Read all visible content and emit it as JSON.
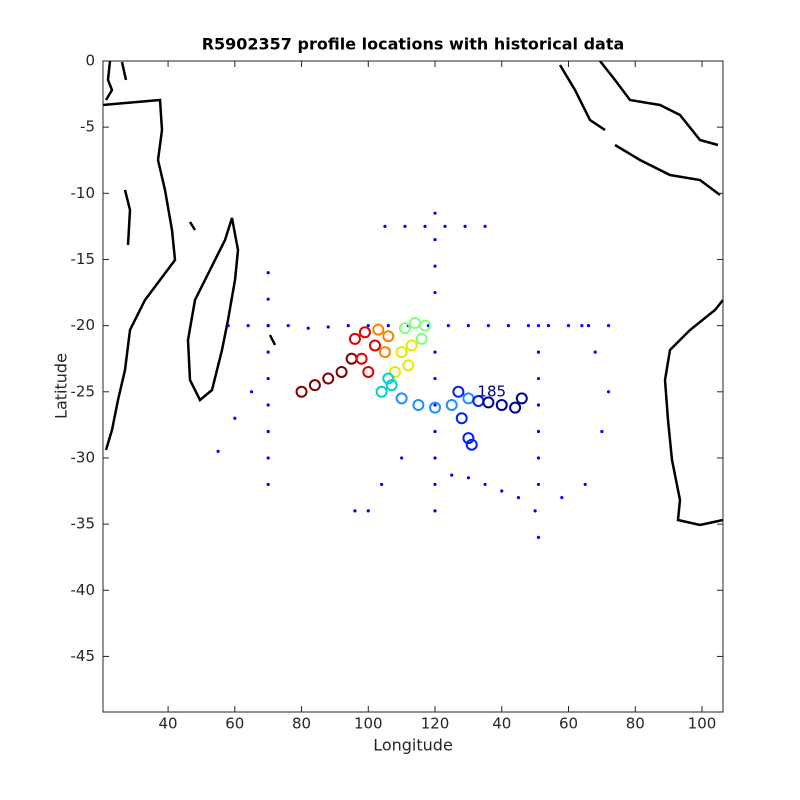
{
  "chart_data": {
    "type": "scatter",
    "title": "R5902357 profile locations with historical data",
    "xlabel": "Longitude",
    "ylabel": "Latitude",
    "xlim": [
      20.5,
      206.3
    ],
    "ylim": [
      -49.2,
      0
    ],
    "xticks": [
      40,
      60,
      80,
      100,
      120,
      {
        "value": 140,
        "label": "40"
      },
      {
        "value": 160,
        "label": "60"
      },
      {
        "value": 180,
        "label": "80"
      },
      {
        "value": 200,
        "label": "100"
      }
    ],
    "yticks": [
      0,
      -5,
      -10,
      -15,
      -20,
      -25,
      -30,
      -35,
      -40,
      -45
    ],
    "grid": false,
    "annotations": [
      {
        "text": "185",
        "x": 137,
        "y": -25
      }
    ],
    "series": [
      {
        "color": "#0000ff",
        "marker": "dot",
        "x": [
          58,
          64,
          70,
          76,
          82,
          88,
          94,
          100,
          106,
          112,
          118,
          124,
          130,
          136,
          142,
          148,
          154,
          160,
          166,
          172,
          120,
          120,
          120,
          120,
          120,
          120,
          120,
          120,
          120,
          120,
          120,
          151,
          151,
          151,
          151,
          151,
          151,
          151,
          151,
          105,
          111,
          117,
          123,
          129,
          135,
          70,
          70,
          70,
          70,
          70,
          70,
          70,
          70,
          70,
          125,
          130,
          135,
          140,
          145,
          150,
          158,
          165,
          170,
          172,
          168,
          164,
          110,
          104,
          100,
          96,
          55,
          60,
          65
        ],
        "y": [
          -20,
          -20,
          -20,
          -20,
          -20.2,
          -20.1,
          -20,
          -20,
          -20,
          -20,
          -20,
          -20,
          -20,
          -20,
          -20,
          -20,
          -20,
          -20,
          -20,
          -20,
          -11.5,
          -13.5,
          -15.5,
          -17.5,
          -22,
          -24,
          -26,
          -28,
          -30,
          -32,
          -34,
          -20,
          -22,
          -24,
          -26,
          -28,
          -30,
          -32,
          -36,
          -12.5,
          -12.5,
          -12.5,
          -12.5,
          -12.5,
          -12.5,
          -16,
          -18,
          -20,
          -22,
          -24,
          -26,
          -28,
          -30,
          -32,
          -31.3,
          -31.5,
          -32,
          -32.5,
          -33,
          -34,
          -33,
          -32,
          -28,
          -25,
          -22,
          -20,
          -30,
          -32,
          -34,
          -34,
          -29.5,
          -27,
          -25
        ]
      },
      {
        "color": "#800000",
        "marker": "ring",
        "x": [
          80,
          84,
          88,
          92,
          95
        ],
        "y": [
          -25,
          -24.5,
          -24,
          -23.5,
          -22.5
        ]
      },
      {
        "color": "#e00000",
        "marker": "ring",
        "x": [
          96,
          98,
          100,
          102,
          99
        ],
        "y": [
          -21,
          -22.5,
          -23.5,
          -21.5,
          -20.5
        ]
      },
      {
        "color": "#ff8000",
        "marker": "ring",
        "x": [
          103,
          106,
          105
        ],
        "y": [
          -20.3,
          -20.8,
          -22
        ]
      },
      {
        "color": "#e8e800",
        "marker": "ring",
        "x": [
          110,
          112,
          108,
          113
        ],
        "y": [
          -22,
          -23,
          -23.5,
          -21.5
        ]
      },
      {
        "color": "#80ff80",
        "marker": "ring",
        "x": [
          114,
          117,
          111,
          116
        ],
        "y": [
          -19.8,
          -20,
          -20.2,
          -21
        ]
      },
      {
        "color": "#00d0d0",
        "marker": "ring",
        "x": [
          106,
          104,
          107
        ],
        "y": [
          -24,
          -25,
          -24.5
        ]
      },
      {
        "color": "#1e90ff",
        "marker": "ring",
        "x": [
          110,
          115,
          120,
          125,
          130
        ],
        "y": [
          -25.5,
          -26,
          -26.2,
          -26,
          -25.5
        ]
      },
      {
        "color": "#0020ff",
        "marker": "ring",
        "x": [
          127,
          133,
          128,
          130,
          131
        ],
        "y": [
          -25,
          -25.7,
          -27,
          -28.5,
          -29
        ]
      },
      {
        "color": "#000090",
        "marker": "ring",
        "x": [
          136,
          140,
          144,
          146
        ],
        "y": [
          -25.8,
          -26,
          -26.2,
          -25.5
        ]
      }
    ]
  }
}
